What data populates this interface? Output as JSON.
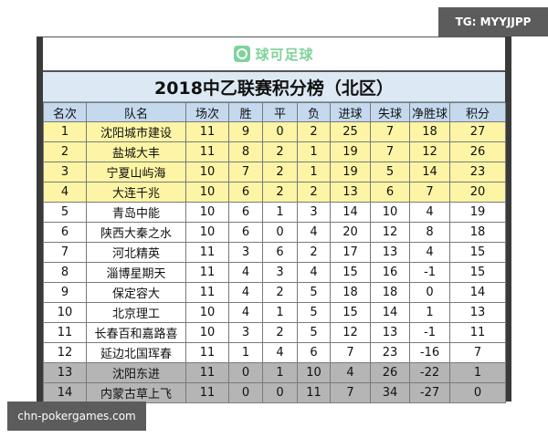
{
  "watermarks": {
    "top_right": "TG: MYYJJPP",
    "bottom_left": "chn-pokergames.com"
  },
  "logo": {
    "text": "球可足球",
    "icon": "chat-bubble-icon",
    "color": "#7fd39a"
  },
  "title": "2018中乙联赛积分榜（北区）",
  "colors": {
    "header_bg": "#c5d9ee",
    "title_bg": "#dce8f3",
    "promotion_bg": "#fdf5a5",
    "relegation_bg": "#b5b5b5"
  },
  "columns": [
    "名次",
    "队名",
    "场次",
    "胜",
    "平",
    "负",
    "进球",
    "失球",
    "净胜球",
    "积分"
  ],
  "rows": [
    {
      "rank": "1",
      "team": "沈阳城市建设",
      "played": "11",
      "w": "9",
      "d": "0",
      "l": "2",
      "gf": "25",
      "ga": "7",
      "gd": "18",
      "pts": "27",
      "zone": "top"
    },
    {
      "rank": "2",
      "team": "盐城大丰",
      "played": "11",
      "w": "8",
      "d": "2",
      "l": "1",
      "gf": "19",
      "ga": "7",
      "gd": "12",
      "pts": "26",
      "zone": "top"
    },
    {
      "rank": "3",
      "team": "宁夏山屿海",
      "played": "10",
      "w": "7",
      "d": "2",
      "l": "1",
      "gf": "19",
      "ga": "5",
      "gd": "14",
      "pts": "23",
      "zone": "top"
    },
    {
      "rank": "4",
      "team": "大连千兆",
      "played": "10",
      "w": "6",
      "d": "2",
      "l": "2",
      "gf": "13",
      "ga": "6",
      "gd": "7",
      "pts": "20",
      "zone": "top"
    },
    {
      "rank": "5",
      "team": "青岛中能",
      "played": "10",
      "w": "6",
      "d": "1",
      "l": "3",
      "gf": "14",
      "ga": "10",
      "gd": "4",
      "pts": "19",
      "zone": "mid"
    },
    {
      "rank": "6",
      "team": "陕西大秦之水",
      "played": "10",
      "w": "6",
      "d": "0",
      "l": "4",
      "gf": "20",
      "ga": "12",
      "gd": "8",
      "pts": "18",
      "zone": "mid"
    },
    {
      "rank": "7",
      "team": "河北精英",
      "played": "11",
      "w": "3",
      "d": "6",
      "l": "2",
      "gf": "17",
      "ga": "13",
      "gd": "4",
      "pts": "15",
      "zone": "mid"
    },
    {
      "rank": "8",
      "team": "淄博星期天",
      "played": "11",
      "w": "4",
      "d": "3",
      "l": "4",
      "gf": "15",
      "ga": "16",
      "gd": "-1",
      "pts": "15",
      "zone": "mid"
    },
    {
      "rank": "9",
      "team": "保定容大",
      "played": "11",
      "w": "4",
      "d": "2",
      "l": "5",
      "gf": "18",
      "ga": "18",
      "gd": "0",
      "pts": "14",
      "zone": "mid"
    },
    {
      "rank": "10",
      "team": "北京理工",
      "played": "10",
      "w": "4",
      "d": "1",
      "l": "5",
      "gf": "15",
      "ga": "14",
      "gd": "1",
      "pts": "13",
      "zone": "mid"
    },
    {
      "rank": "11",
      "team": "长春百和嘉路喜",
      "played": "10",
      "w": "3",
      "d": "2",
      "l": "5",
      "gf": "12",
      "ga": "13",
      "gd": "-1",
      "pts": "11",
      "zone": "mid"
    },
    {
      "rank": "12",
      "team": "延边北国珲春",
      "played": "11",
      "w": "1",
      "d": "4",
      "l": "6",
      "gf": "7",
      "ga": "23",
      "gd": "-16",
      "pts": "7",
      "zone": "mid"
    },
    {
      "rank": "13",
      "team": "沈阳东进",
      "played": "11",
      "w": "0",
      "d": "1",
      "l": "10",
      "gf": "4",
      "ga": "26",
      "gd": "-22",
      "pts": "1",
      "zone": "rel"
    },
    {
      "rank": "14",
      "team": "内蒙古草上飞",
      "played": "11",
      "w": "0",
      "d": "0",
      "l": "11",
      "gf": "7",
      "ga": "34",
      "gd": "-27",
      "pts": "0",
      "zone": "rel"
    }
  ]
}
